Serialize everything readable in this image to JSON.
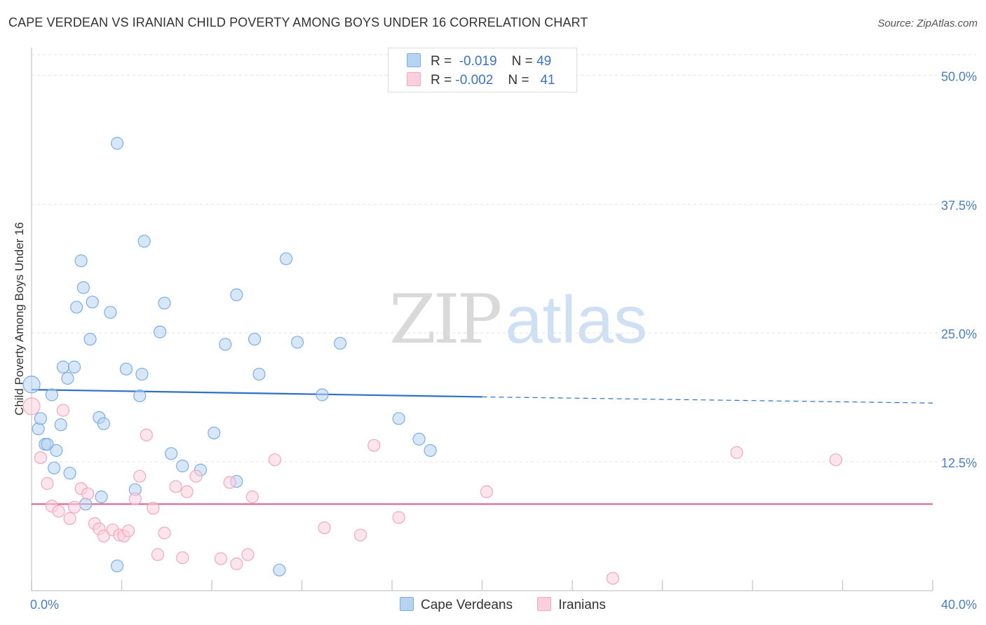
{
  "title": "CAPE VERDEAN VS IRANIAN CHILD POVERTY AMONG BOYS UNDER 16 CORRELATION CHART",
  "source": "Source: ZipAtlas.com",
  "watermark": {
    "zip": "ZIP",
    "atlas": "atlas"
  },
  "legend": {
    "rows": [
      {
        "r_label": "R =",
        "r_value": "-0.019",
        "n_label": "N =",
        "n_value": "49"
      },
      {
        "r_label": "R =",
        "r_value": "-0.002",
        "n_label": "N =",
        "n_value": "41"
      }
    ]
  },
  "chart_data": {
    "type": "scatter",
    "title": "CAPE VERDEAN VS IRANIAN CHILD POVERTY AMONG BOYS UNDER 16 CORRELATION CHART",
    "xlabel": "",
    "ylabel": "Child Poverty Among Boys Under 16",
    "xlim": [
      0,
      40
    ],
    "ylim": [
      0,
      52
    ],
    "x_tick_labels": [
      "0.0%",
      "40.0%"
    ],
    "y_ticks": [
      12.5,
      25.0,
      37.5,
      50.0
    ],
    "y_tick_labels": [
      "12.5%",
      "25.0%",
      "37.5%",
      "50.0%"
    ],
    "grid": true,
    "series": [
      {
        "name": "Cape Verdeans",
        "color": "#7aaee8",
        "trend": {
          "x0": 0,
          "y0": 19.5,
          "x1": 20,
          "y1": 18.8,
          "x_dash_end": 40,
          "y_dash_end": 18.2
        },
        "points": [
          [
            0.0,
            20.0
          ],
          [
            0.3,
            15.7
          ],
          [
            0.4,
            16.7
          ],
          [
            0.6,
            14.2
          ],
          [
            0.7,
            14.2
          ],
          [
            0.9,
            19.0
          ],
          [
            1.0,
            11.9
          ],
          [
            1.1,
            13.6
          ],
          [
            1.3,
            16.1
          ],
          [
            1.4,
            21.7
          ],
          [
            1.6,
            20.6
          ],
          [
            1.7,
            11.4
          ],
          [
            1.9,
            21.7
          ],
          [
            2.0,
            27.5
          ],
          [
            2.2,
            32.0
          ],
          [
            2.3,
            29.4
          ],
          [
            2.4,
            8.4
          ],
          [
            2.6,
            24.4
          ],
          [
            2.7,
            28.0
          ],
          [
            3.0,
            16.8
          ],
          [
            3.1,
            9.1
          ],
          [
            3.2,
            16.2
          ],
          [
            3.5,
            27.0
          ],
          [
            3.8,
            2.4
          ],
          [
            3.8,
            43.4
          ],
          [
            4.2,
            21.5
          ],
          [
            4.6,
            9.8
          ],
          [
            4.8,
            18.9
          ],
          [
            4.9,
            21.0
          ],
          [
            5.0,
            33.9
          ],
          [
            5.7,
            25.1
          ],
          [
            5.9,
            27.9
          ],
          [
            6.2,
            13.3
          ],
          [
            6.7,
            12.1
          ],
          [
            7.5,
            11.7
          ],
          [
            8.1,
            15.3
          ],
          [
            8.6,
            23.9
          ],
          [
            9.1,
            10.6
          ],
          [
            9.1,
            28.7
          ],
          [
            9.9,
            24.4
          ],
          [
            10.1,
            21.0
          ],
          [
            11.0,
            2.0
          ],
          [
            11.3,
            32.2
          ],
          [
            11.8,
            24.1
          ],
          [
            12.9,
            19.0
          ],
          [
            13.7,
            24.0
          ],
          [
            16.3,
            16.7
          ],
          [
            17.2,
            14.7
          ],
          [
            17.7,
            13.6
          ]
        ]
      },
      {
        "name": "Iranians",
        "color": "#f2a7c0",
        "trend": {
          "x0": 0,
          "y0": 8.4,
          "x1": 40,
          "y1": 8.4
        },
        "points": [
          [
            0.0,
            17.9
          ],
          [
            0.4,
            12.9
          ],
          [
            0.7,
            10.4
          ],
          [
            0.9,
            8.2
          ],
          [
            1.2,
            7.7
          ],
          [
            1.4,
            17.5
          ],
          [
            1.7,
            7.0
          ],
          [
            1.9,
            8.1
          ],
          [
            2.2,
            9.9
          ],
          [
            2.5,
            9.4
          ],
          [
            2.8,
            6.5
          ],
          [
            3.0,
            6.0
          ],
          [
            3.2,
            5.3
          ],
          [
            3.6,
            5.9
          ],
          [
            3.9,
            5.4
          ],
          [
            4.1,
            5.3
          ],
          [
            4.3,
            5.8
          ],
          [
            4.6,
            8.9
          ],
          [
            4.8,
            11.1
          ],
          [
            5.1,
            15.1
          ],
          [
            5.4,
            8.0
          ],
          [
            5.6,
            3.5
          ],
          [
            5.9,
            5.6
          ],
          [
            6.4,
            10.1
          ],
          [
            6.7,
            3.2
          ],
          [
            6.9,
            9.6
          ],
          [
            7.3,
            11.1
          ],
          [
            8.4,
            3.1
          ],
          [
            8.8,
            10.5
          ],
          [
            9.1,
            2.6
          ],
          [
            9.6,
            3.5
          ],
          [
            9.8,
            9.1
          ],
          [
            10.8,
            12.7
          ],
          [
            13.0,
            6.1
          ],
          [
            14.6,
            5.4
          ],
          [
            15.2,
            14.1
          ],
          [
            16.3,
            7.1
          ],
          [
            20.2,
            9.6
          ],
          [
            25.8,
            1.2
          ],
          [
            31.3,
            13.4
          ],
          [
            35.7,
            12.7
          ]
        ]
      }
    ]
  },
  "bottom_legend": [
    {
      "label": "Cape Verdeans",
      "color": "#b8d3f2",
      "border": "#7aaee8"
    },
    {
      "label": "Iranians",
      "color": "#fbd0dd",
      "border": "#f2a7c0"
    }
  ]
}
